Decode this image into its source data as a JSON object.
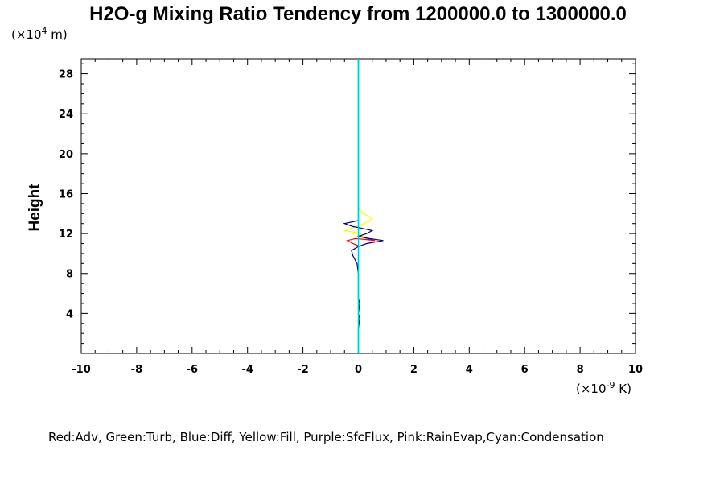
{
  "chart_data": {
    "type": "line",
    "title": "H2O-g Mixing Ratio Tendency from 1200000.0 to 1300000.0",
    "ylabel": "Height",
    "y_unit_prefix": "(×10",
    "y_unit_exp": "4",
    "y_unit_suffix": " m)",
    "x_unit_prefix": "(×10",
    "x_unit_exp": "-9",
    "x_unit_suffix": " K)",
    "xlim": [
      -10,
      10
    ],
    "ylim": [
      0,
      29.5
    ],
    "x_ticks": [
      "-10",
      "-8",
      "-6",
      "-4",
      "-2",
      "0",
      "2",
      "4",
      "6",
      "8",
      "10"
    ],
    "y_ticks": [
      "4",
      "8",
      "12",
      "16",
      "20",
      "24",
      "28"
    ],
    "legend": "Red:Adv, Green:Turb, Blue:Diff, Yellow:Fill, Purple:SfcFlux, Pink:RainEvap,Cyan:Condensation",
    "grid": false,
    "series": [
      {
        "color": "#ffff00",
        "points": [
          [
            0,
            0
          ],
          [
            0,
            11.5
          ],
          [
            0.1,
            12
          ],
          [
            -0.5,
            12.3
          ],
          [
            -0.2,
            12.6
          ],
          [
            0.2,
            13
          ],
          [
            0.5,
            13.5
          ],
          [
            0.2,
            14
          ],
          [
            0,
            14.5
          ],
          [
            0,
            29.5
          ]
        ]
      },
      {
        "color": "#ff0000",
        "points": [
          [
            0,
            0
          ],
          [
            0,
            10.8
          ],
          [
            -0.2,
            11
          ],
          [
            -0.4,
            11.3
          ],
          [
            -0.1,
            11.5
          ],
          [
            0.3,
            11.4
          ],
          [
            0.6,
            11.3
          ],
          [
            0.2,
            11.6
          ],
          [
            0,
            11.8
          ],
          [
            0,
            29.5
          ]
        ]
      },
      {
        "color": "#000080",
        "points": [
          [
            0,
            0
          ],
          [
            0,
            2.5
          ],
          [
            0.05,
            3.5
          ],
          [
            0,
            4
          ],
          [
            0.05,
            5
          ],
          [
            0,
            5.5
          ],
          [
            0,
            8
          ],
          [
            -0.05,
            9
          ],
          [
            -0.2,
            9.8
          ],
          [
            -0.25,
            10.3
          ],
          [
            0,
            10.7
          ],
          [
            0.3,
            11
          ],
          [
            0.9,
            11.3
          ],
          [
            0.4,
            11.5
          ],
          [
            0,
            11.7
          ],
          [
            0.3,
            12
          ],
          [
            0.5,
            12.3
          ],
          [
            0,
            12.6
          ],
          [
            -0.2,
            12.7
          ],
          [
            -0.5,
            13
          ],
          [
            0,
            13.3
          ],
          [
            0,
            29.5
          ]
        ]
      },
      {
        "color": "#00cccc",
        "points": [
          [
            0,
            0
          ],
          [
            0,
            29.5
          ]
        ]
      }
    ]
  }
}
